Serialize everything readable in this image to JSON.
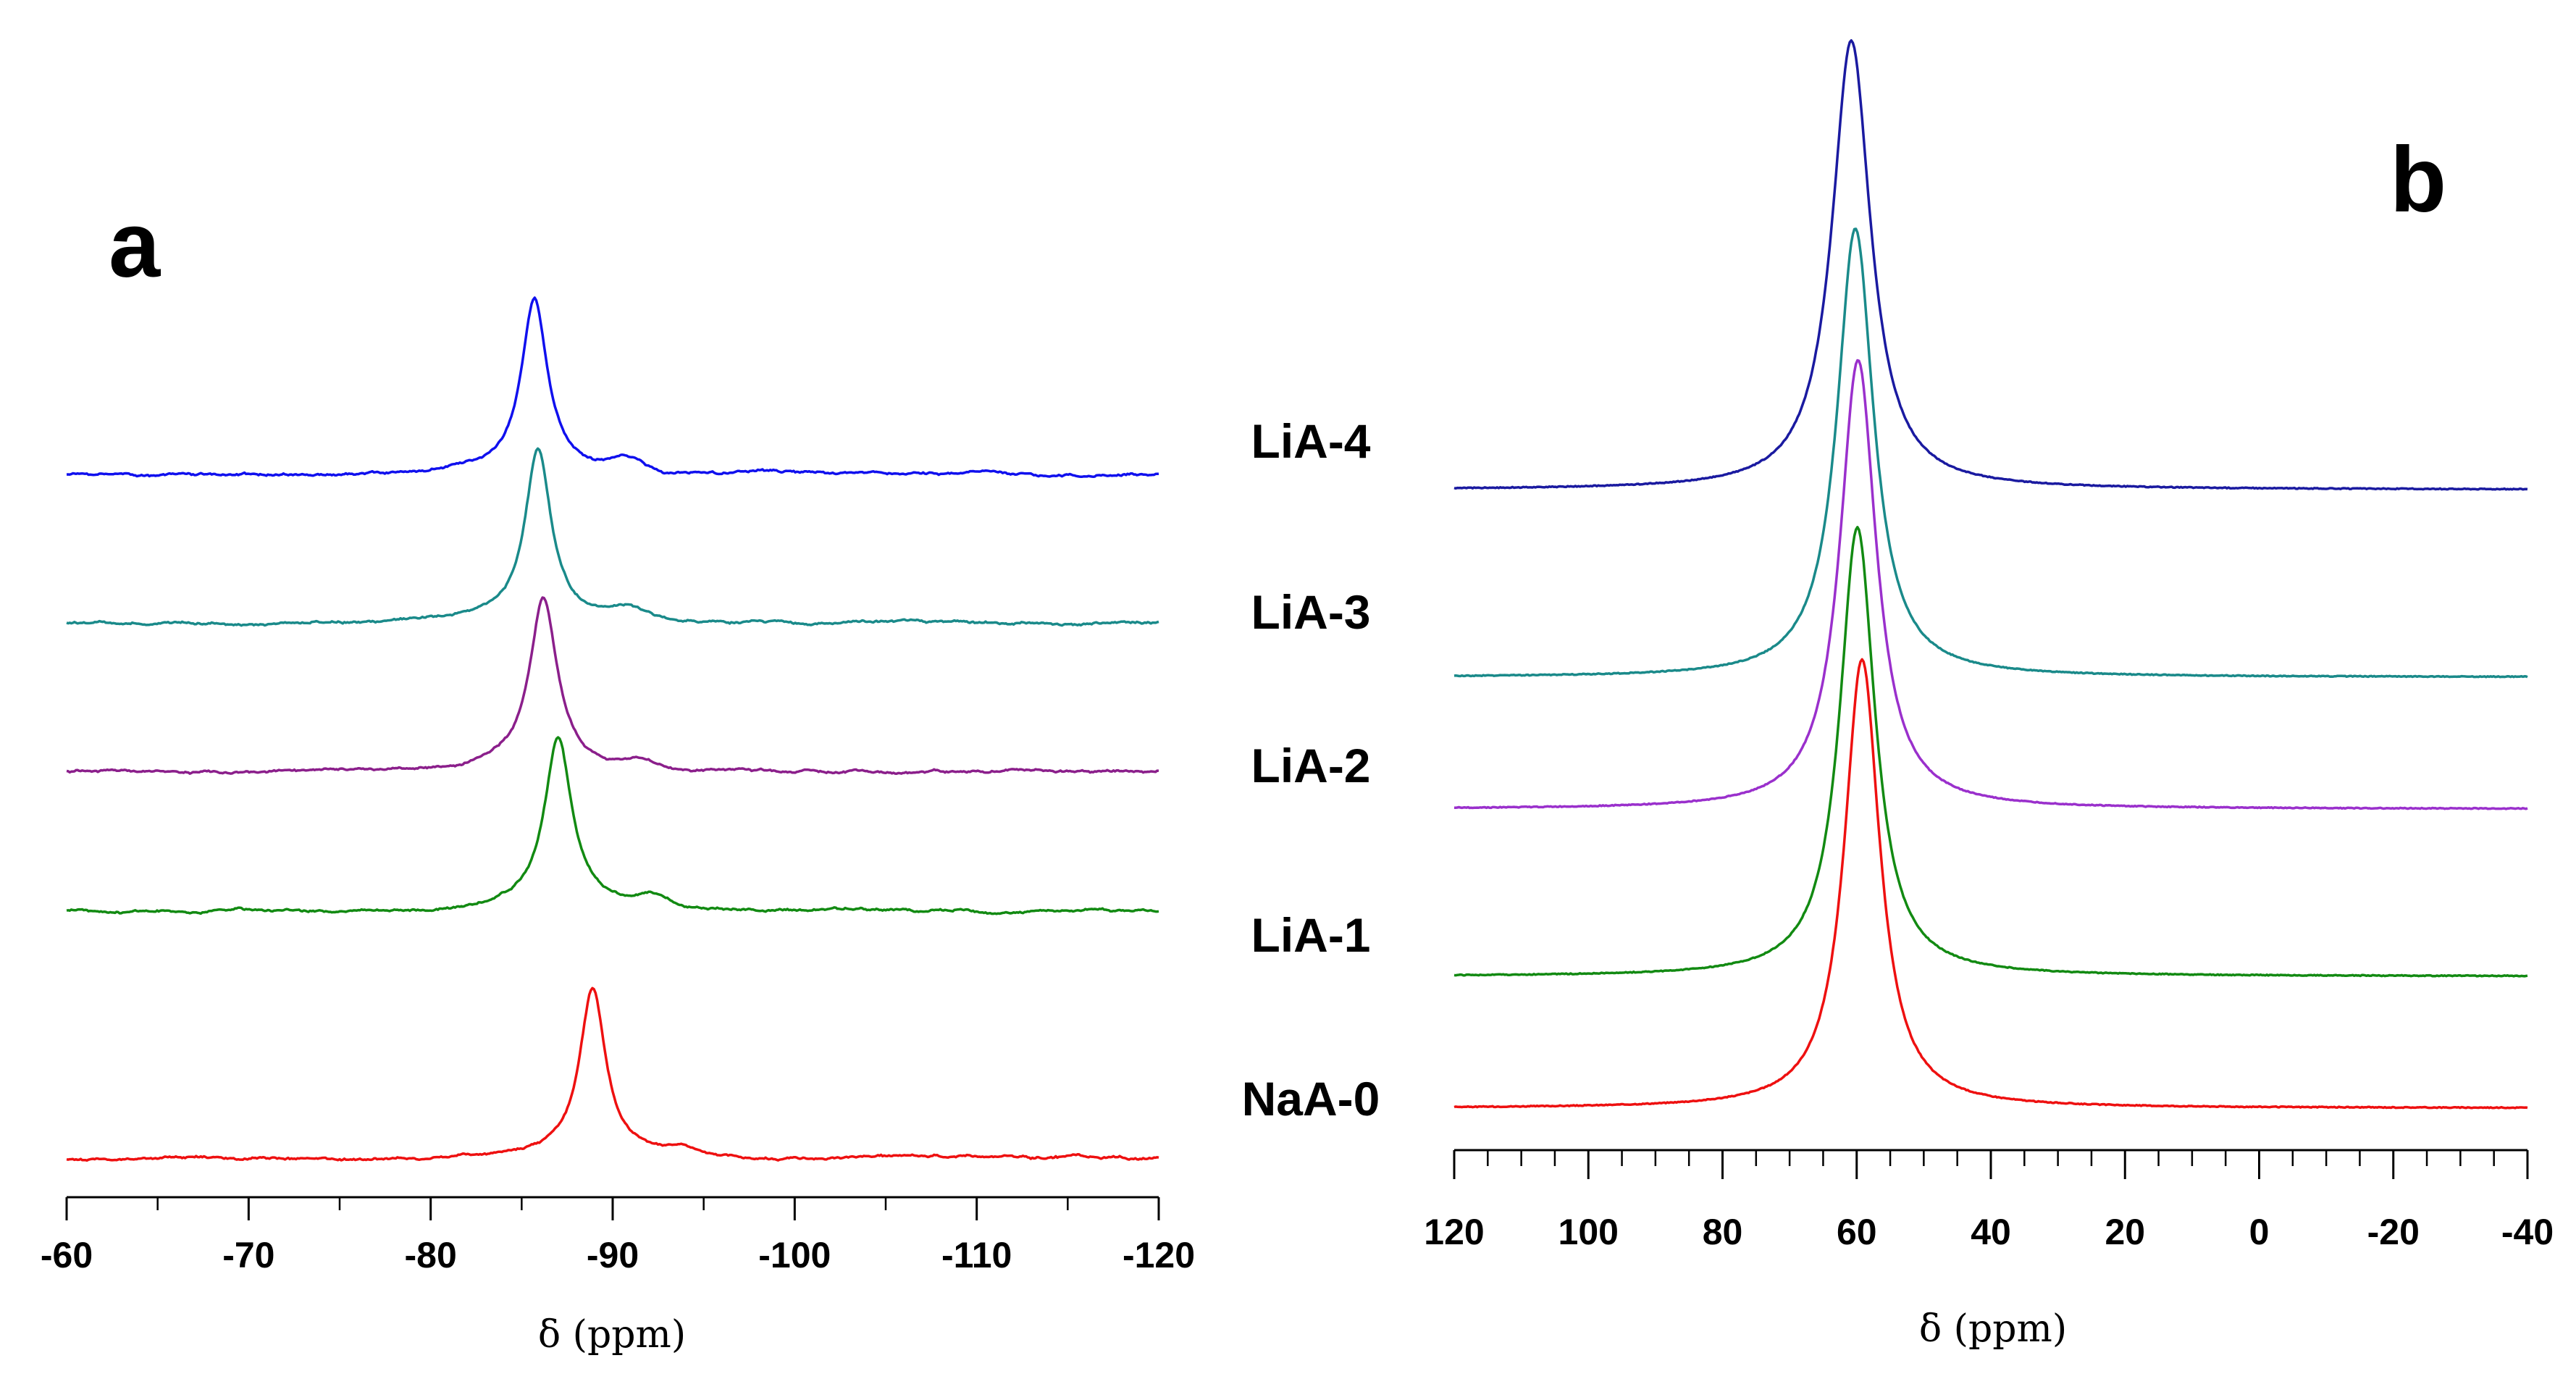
{
  "chart_data": [
    {
      "type": "line",
      "panel_label": "a",
      "xlabel": "δ (ppm)",
      "xlim": [
        -60,
        -120
      ],
      "ticks": [
        -60,
        -70,
        -80,
        -90,
        -100,
        -110,
        -120
      ],
      "tick_labels": [
        "-60",
        "-70",
        "-80",
        "-90",
        "-100",
        "-110",
        "-120"
      ],
      "series": [
        {
          "name": "LiA-4",
          "color": "#1010ee",
          "peak_x": -85.7,
          "peak_height": 0.78,
          "peak_width": 0.85,
          "shoulder_x": -90.8,
          "shoulder_height": 0.06
        },
        {
          "name": "LiA-3",
          "color": "#1a8a8a",
          "peak_x": -85.9,
          "peak_height": 0.77,
          "peak_width": 0.85,
          "shoulder_x": -90.8,
          "shoulder_height": 0.05
        },
        {
          "name": "LiA-2",
          "color": "#8b1f8b",
          "peak_x": -86.2,
          "peak_height": 0.77,
          "peak_width": 0.9,
          "shoulder_x": -91.5,
          "shoulder_height": 0.04
        },
        {
          "name": "LiA-1",
          "color": "#128a12",
          "peak_x": -87.0,
          "peak_height": 0.77,
          "peak_width": 0.9,
          "shoulder_x": -92.2,
          "shoulder_height": 0.05
        },
        {
          "name": "NaA-0",
          "color": "#ee1010",
          "peak_x": -88.9,
          "peak_height": 0.76,
          "peak_width": 0.85,
          "shoulder_x": -93.8,
          "shoulder_height": 0.04
        }
      ]
    },
    {
      "type": "line",
      "panel_label": "b",
      "xlabel": "δ (ppm)",
      "xlim": [
        120,
        -40
      ],
      "ticks": [
        120,
        100,
        80,
        60,
        40,
        20,
        0,
        -20,
        -40
      ],
      "tick_labels": [
        "120",
        "100",
        "80",
        "60",
        "40",
        "20",
        "0",
        "-20",
        "-40"
      ],
      "series": [
        {
          "name": "LiA-4",
          "color": "#1a1aa0",
          "peak_x": 60.8,
          "peak_height": 1.0,
          "peak_width": 3.5
        },
        {
          "name": "LiA-3",
          "color": "#1a8a8a",
          "peak_x": 60.2,
          "peak_height": 1.0,
          "peak_width": 3.3
        },
        {
          "name": "LiA-2",
          "color": "#9a30cc",
          "peak_x": 59.8,
          "peak_height": 1.0,
          "peak_width": 3.3
        },
        {
          "name": "LiA-1",
          "color": "#128a12",
          "peak_x": 59.9,
          "peak_height": 1.0,
          "peak_width": 3.2
        },
        {
          "name": "NaA-0",
          "color": "#ee1010",
          "peak_x": 59.2,
          "peak_height": 1.0,
          "peak_width": 3.2
        }
      ]
    }
  ]
}
